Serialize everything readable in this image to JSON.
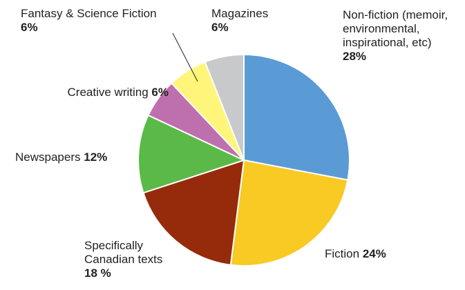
{
  "chart_data": {
    "type": "pie",
    "categories": [
      "Non-fiction (memoir, environmental, inspirational, etc)",
      "Fiction",
      "Specifically Canadian texts",
      "Newspapers",
      "Creative writing",
      "Fantasy & Science Fiction",
      "Magazines"
    ],
    "values": [
      28,
      24,
      18,
      12,
      6,
      6,
      6
    ],
    "value_labels": [
      "28%",
      "24%",
      "18 %",
      "12%",
      "6%",
      "6%",
      "6%"
    ],
    "colors": [
      "#5b9bd5",
      "#f9c924",
      "#952b0a",
      "#5bba47",
      "#be6fad",
      "#fff57a",
      "#c8c9cb"
    ]
  }
}
